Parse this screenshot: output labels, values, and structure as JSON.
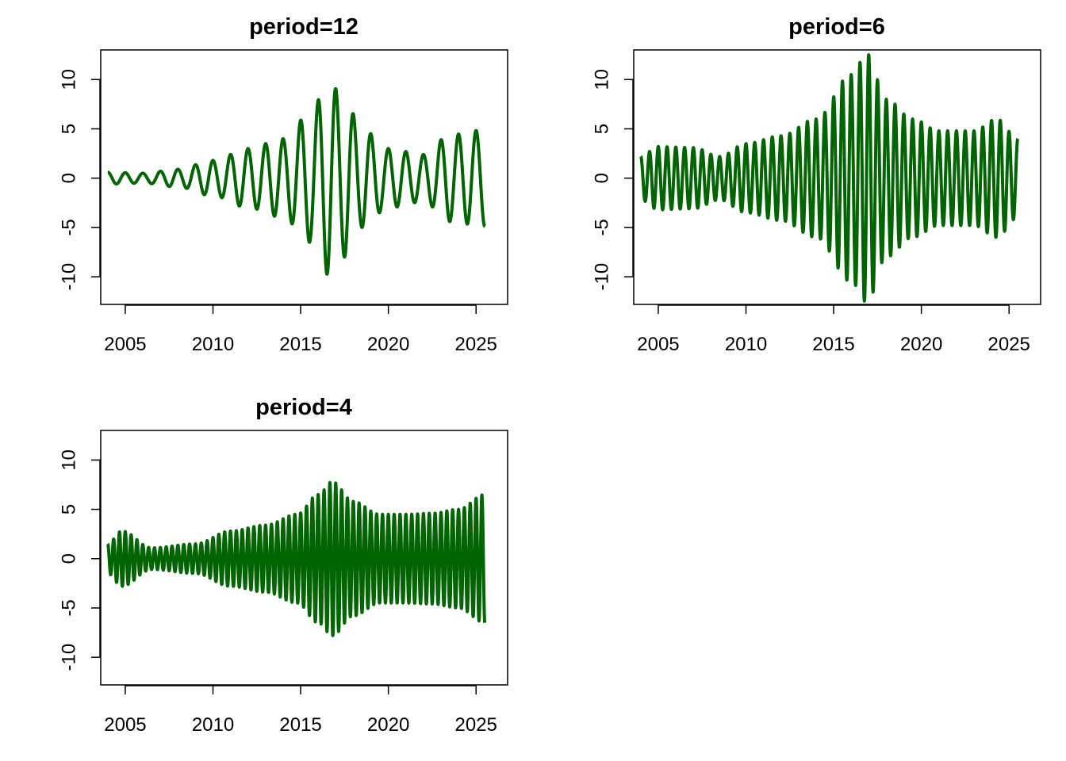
{
  "chart_data": [
    {
      "type": "line",
      "title": "period=12",
      "xlabel": "",
      "ylabel": "",
      "xlim": [
        2003.6,
        2026.8
      ],
      "ylim": [
        -12.8,
        13.0
      ],
      "x_ticks": [
        2005,
        2010,
        2015,
        2020,
        2025
      ],
      "y_ticks": [
        -10,
        -5,
        0,
        5,
        10
      ],
      "grid": false,
      "color": "#006400",
      "period": 12,
      "x_start": 2004.0,
      "x_end": 2025.5,
      "envelope": [
        {
          "x": 2004.0,
          "amp": 0.6
        },
        {
          "x": 2006.0,
          "amp": 0.5
        },
        {
          "x": 2008.0,
          "amp": 0.9
        },
        {
          "x": 2010.0,
          "amp": 1.8
        },
        {
          "x": 2012.0,
          "amp": 3.0
        },
        {
          "x": 2014.0,
          "amp": 4.0
        },
        {
          "x": 2015.5,
          "amp": 6.5
        },
        {
          "x": 2016.6,
          "amp": 9.8
        },
        {
          "x": 2017.5,
          "amp": 8.0
        },
        {
          "x": 2018.5,
          "amp": 5.0
        },
        {
          "x": 2020.0,
          "amp": 3.0
        },
        {
          "x": 2022.0,
          "amp": 2.4
        },
        {
          "x": 2023.5,
          "amp": 4.4
        },
        {
          "x": 2025.5,
          "amp": 4.9
        }
      ]
    },
    {
      "type": "line",
      "title": "period=6",
      "xlabel": "",
      "ylabel": "",
      "xlim": [
        2003.6,
        2026.8
      ],
      "ylim": [
        -12.8,
        13.0
      ],
      "x_ticks": [
        2005,
        2010,
        2015,
        2020,
        2025
      ],
      "y_ticks": [
        -10,
        -5,
        0,
        5,
        10
      ],
      "grid": false,
      "color": "#006400",
      "period": 6,
      "x_start": 2004.0,
      "x_end": 2025.5,
      "envelope": [
        {
          "x": 2004.0,
          "amp": 2.2
        },
        {
          "x": 2005.0,
          "amp": 3.2
        },
        {
          "x": 2007.0,
          "amp": 3.1
        },
        {
          "x": 2008.5,
          "amp": 2.2
        },
        {
          "x": 2010.0,
          "amp": 3.5
        },
        {
          "x": 2012.0,
          "amp": 4.3
        },
        {
          "x": 2014.0,
          "amp": 6.0
        },
        {
          "x": 2016.0,
          "amp": 10.5
        },
        {
          "x": 2016.9,
          "amp": 12.6
        },
        {
          "x": 2018.0,
          "amp": 8.0
        },
        {
          "x": 2019.5,
          "amp": 6.0
        },
        {
          "x": 2021.0,
          "amp": 4.8
        },
        {
          "x": 2023.0,
          "amp": 4.8
        },
        {
          "x": 2024.3,
          "amp": 6.0
        },
        {
          "x": 2025.5,
          "amp": 4.0
        }
      ]
    },
    {
      "type": "line",
      "title": "period=4",
      "xlabel": "",
      "ylabel": "",
      "xlim": [
        2003.6,
        2026.8
      ],
      "ylim": [
        -12.8,
        13.0
      ],
      "x_ticks": [
        2005,
        2010,
        2015,
        2020,
        2025
      ],
      "y_ticks": [
        -10,
        -5,
        0,
        5,
        10
      ],
      "grid": false,
      "color": "#006400",
      "period": 4,
      "x_start": 2004.0,
      "x_end": 2025.5,
      "envelope": [
        {
          "x": 2004.0,
          "amp": 1.5
        },
        {
          "x": 2004.8,
          "amp": 2.8
        },
        {
          "x": 2006.5,
          "amp": 1.1
        },
        {
          "x": 2009.0,
          "amp": 1.5
        },
        {
          "x": 2011.0,
          "amp": 2.8
        },
        {
          "x": 2013.0,
          "amp": 3.4
        },
        {
          "x": 2014.8,
          "amp": 4.5
        },
        {
          "x": 2016.0,
          "amp": 6.5
        },
        {
          "x": 2016.8,
          "amp": 7.8
        },
        {
          "x": 2018.0,
          "amp": 5.8
        },
        {
          "x": 2019.5,
          "amp": 4.5
        },
        {
          "x": 2021.0,
          "amp": 4.5
        },
        {
          "x": 2022.5,
          "amp": 4.6
        },
        {
          "x": 2024.0,
          "amp": 5.0
        },
        {
          "x": 2025.5,
          "amp": 6.5
        }
      ]
    }
  ]
}
